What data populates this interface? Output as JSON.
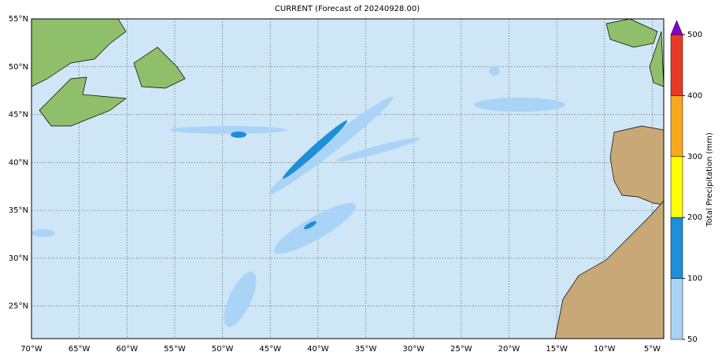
{
  "title": "CURRENT (Forecast of 20240928.00)",
  "lonlim": [
    -70,
    -3.8
  ],
  "latlim": [
    21.6,
    55
  ],
  "lon_ticks": [
    {
      "value": -70,
      "label": "70°W"
    },
    {
      "value": -65,
      "label": "65°W"
    },
    {
      "value": -60,
      "label": "60°W"
    },
    {
      "value": -55,
      "label": "55°W"
    },
    {
      "value": -50,
      "label": "50°W"
    },
    {
      "value": -45,
      "label": "45°W"
    },
    {
      "value": -40,
      "label": "40°W"
    },
    {
      "value": -35,
      "label": "35°W"
    },
    {
      "value": -30,
      "label": "30°W"
    },
    {
      "value": -25,
      "label": "25°W"
    },
    {
      "value": -20,
      "label": "20°W"
    },
    {
      "value": -15,
      "label": "15°W"
    },
    {
      "value": -10,
      "label": "10°W"
    },
    {
      "value": -5,
      "label": "5°W"
    }
  ],
  "lat_ticks": [
    {
      "value": 25,
      "label": "25°N"
    },
    {
      "value": 30,
      "label": "30°N"
    },
    {
      "value": 35,
      "label": "35°N"
    },
    {
      "value": 40,
      "label": "40°N"
    },
    {
      "value": 45,
      "label": "45°N"
    },
    {
      "value": 50,
      "label": "50°N"
    },
    {
      "value": 55,
      "label": "55°N"
    }
  ],
  "colorbar": {
    "label": "Total Precipitation (mm)",
    "levels": [
      50,
      100,
      200,
      300,
      400,
      500
    ],
    "colors": [
      "#aad4f7",
      "#1c8fd6",
      "#ffff00",
      "#f7a81e",
      "#e63a26"
    ],
    "extend_color": "#8800cc"
  }
}
